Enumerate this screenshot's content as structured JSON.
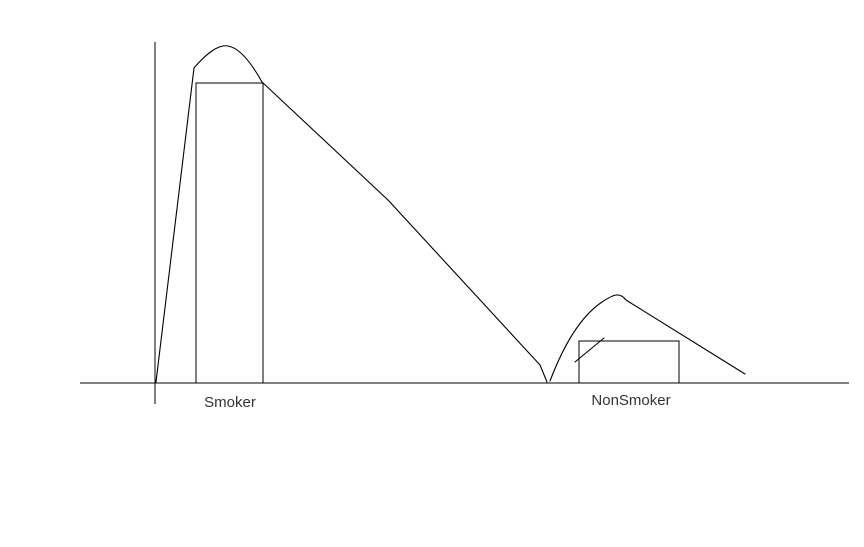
{
  "chart_data": {
    "type": "bar",
    "categories": [
      "Smoker",
      "NonSmoker"
    ],
    "values": [
      100,
      14
    ],
    "grid": false,
    "legend": "none",
    "colors": {
      "stroke": "#000000",
      "bar_fill": "#ffffff",
      "label": "#333333"
    }
  }
}
